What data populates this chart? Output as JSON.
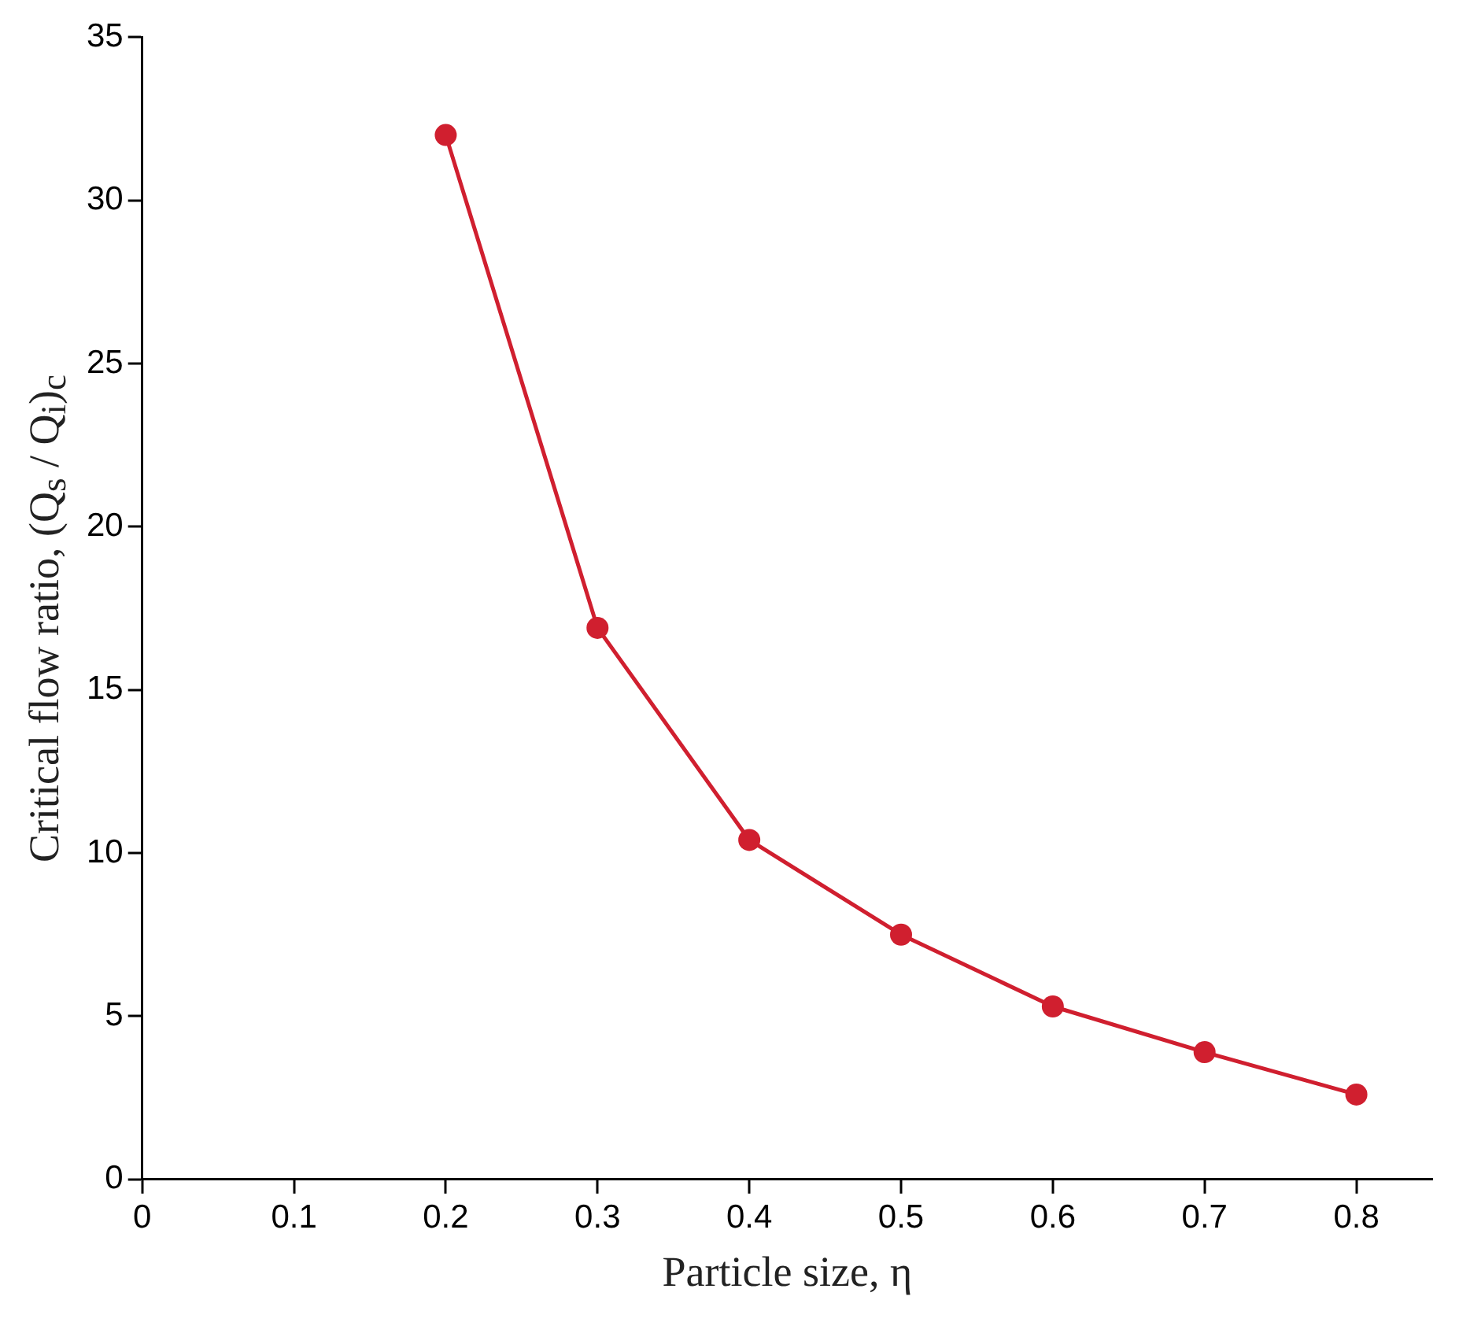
{
  "chart_data": {
    "type": "line",
    "xlabel": "Particle size, η",
    "ylabel": "Critical flow ratio, (Q$_{s}$ / Q$_{i}$)$_{c}$",
    "x": [
      0.2,
      0.3,
      0.4,
      0.5,
      0.6,
      0.7,
      0.8
    ],
    "series": [
      {
        "color": "#d01f2f",
        "values": [
          32,
          16.9,
          10.4,
          7.5,
          5.3,
          3.9,
          2.6
        ]
      }
    ],
    "xlim": [
      0,
      0.85
    ],
    "xticks": [
      0,
      0.1,
      0.2,
      0.3,
      0.4,
      0.5,
      0.6,
      0.7,
      0.8
    ],
    "ylim": [
      0,
      35
    ],
    "yticks": [
      0,
      5,
      10,
      15,
      20,
      25,
      30,
      35
    ],
    "grid": false,
    "legend": false,
    "marker": "circle",
    "line_style": "solid"
  }
}
